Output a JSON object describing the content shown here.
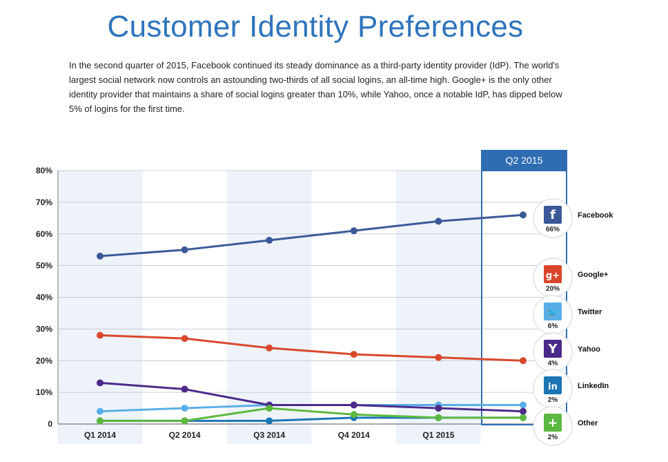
{
  "title": "Customer Identity Preferences",
  "description": "In the second quarter of 2015, Facebook continued its steady dominance as a third-party identity provider (IdP). The world's largest social network now controls an astounding two-thirds of all social logins, an all-time high. Google+ is the only other identity provider that maintains a share of social logins greater than 10%, while Yahoo, once a notable IdP, has dipped below 5% of logins for the first time.",
  "chart_data": {
    "type": "line",
    "categories": [
      "Q1 2014",
      "Q2 2014",
      "Q3 2014",
      "Q4 2014",
      "Q1 2015",
      "Q2 2015"
    ],
    "highlight_label": "Q2 2015",
    "ylim": [
      0,
      80
    ],
    "yticks": [
      "0",
      "10%",
      "20%",
      "30%",
      "40%",
      "50%",
      "60%",
      "70%",
      "80%"
    ],
    "grid": true,
    "series": [
      {
        "name": "Facebook",
        "color": "#3b5998",
        "values": [
          53,
          55,
          58,
          61,
          64,
          66
        ],
        "label": "66%",
        "icon": "facebook-icon",
        "glyph": "f"
      },
      {
        "name": "Google+",
        "color": "#d9472b",
        "values": [
          28,
          27,
          24,
          22,
          21,
          20
        ],
        "label": "20%",
        "icon": "google-plus-icon",
        "glyph": "g+"
      },
      {
        "name": "Twitter",
        "color": "#5aaee8",
        "values": [
          4,
          5,
          6,
          6,
          6,
          6
        ],
        "label": "6%",
        "icon": "twitter-bird-icon",
        "glyph": "🐦"
      },
      {
        "name": "Yahoo",
        "color": "#4b2a8a",
        "values": [
          13,
          11,
          6,
          6,
          5,
          4
        ],
        "label": "4%",
        "icon": "yahoo-icon",
        "glyph": "Y"
      },
      {
        "name": "LinkedIn",
        "color": "#1b75b5",
        "values": [
          1,
          1,
          1,
          2,
          2,
          2
        ],
        "label": "2%",
        "icon": "linkedin-icon",
        "glyph": "in"
      },
      {
        "name": "Other",
        "color": "#5cb840",
        "values": [
          1,
          1,
          5,
          3,
          2,
          2
        ],
        "label": "2%",
        "icon": "plus-icon",
        "glyph": "+"
      }
    ]
  }
}
